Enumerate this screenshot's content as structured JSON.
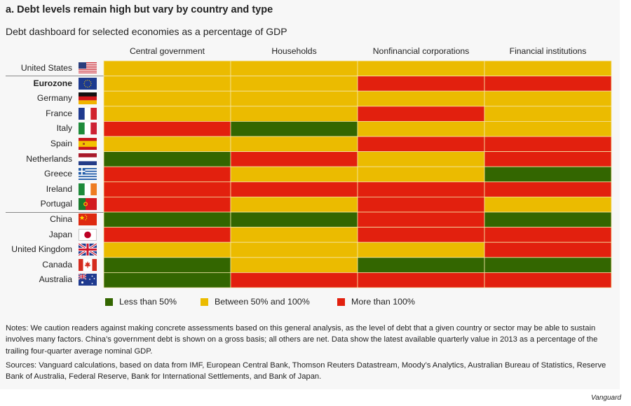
{
  "title": "a. Debt levels remain high but vary by country and type",
  "subtitle": "Debt dashboard for selected economies as a percentage of GDP",
  "chart_data": {
    "type": "heatmap",
    "title": "Debt levels remain high but vary by country and type",
    "subtitle": "Debt dashboard for selected economies as a percentage of GDP",
    "columns": [
      "Central government",
      "Households",
      "Nonfinancial corporations",
      "Financial institutions"
    ],
    "rows": [
      "United States",
      "Eurozone",
      "Germany",
      "France",
      "Italy",
      "Spain",
      "Netherlands",
      "Greece",
      "Ireland",
      "Portugal",
      "China",
      "Japan",
      "United Kingdom",
      "Canada",
      "Australia"
    ],
    "categories": {
      "low": {
        "label": "Less than 50%",
        "color": "#336600"
      },
      "mid": {
        "label": "Between 50% and 100%",
        "color": "#ebbb00"
      },
      "high": {
        "label": "More than 100%",
        "color": "#e2200e"
      }
    },
    "values": [
      [
        "mid",
        "mid",
        "mid",
        "mid"
      ],
      [
        "mid",
        "mid",
        "high",
        "high"
      ],
      [
        "mid",
        "mid",
        "mid",
        "mid"
      ],
      [
        "mid",
        "mid",
        "high",
        "mid"
      ],
      [
        "high",
        "low",
        "mid",
        "mid"
      ],
      [
        "mid",
        "mid",
        "high",
        "high"
      ],
      [
        "low",
        "high",
        "mid",
        "high"
      ],
      [
        "high",
        "mid",
        "mid",
        "low"
      ],
      [
        "high",
        "high",
        "high",
        "high"
      ],
      [
        "high",
        "mid",
        "high",
        "mid"
      ],
      [
        "low",
        "low",
        "high",
        "low"
      ],
      [
        "high",
        "mid",
        "high",
        "high"
      ],
      [
        "mid",
        "mid",
        "mid",
        "high"
      ],
      [
        "low",
        "mid",
        "low",
        "low"
      ],
      [
        "low",
        "high",
        "high",
        "high"
      ]
    ],
    "legend": [
      "Less than 50%",
      "Between 50% and 100%",
      "More than 100%"
    ],
    "legend_position": "bottom",
    "row_groups": [
      [
        "United States"
      ],
      [
        "Eurozone",
        "Germany",
        "France",
        "Italy",
        "Spain",
        "Netherlands",
        "Greece",
        "Ireland",
        "Portugal"
      ],
      [
        "China",
        "Japan",
        "United Kingdom",
        "Canada",
        "Australia"
      ]
    ],
    "bold_rows": [
      "Eurozone"
    ]
  },
  "flags": [
    "us-flag",
    "eu-flag",
    "germany-flag",
    "france-flag",
    "italy-flag",
    "spain-flag",
    "netherlands-flag",
    "greece-flag",
    "ireland-flag",
    "portugal-flag",
    "china-flag",
    "japan-flag",
    "uk-flag",
    "canada-flag",
    "australia-flag"
  ],
  "notes": "Notes: We caution readers against making concrete assessments based on this general analysis, as the level of debt that a given country or sector may be able to sustain involves many factors. China’s government debt is shown on a gross basis; all others are net. Data show the latest available quarterly value in 2013 as a percentage of the trailing four-quarter average nominal GDP.",
  "sources": "Sources: Vanguard calculations, based on data from IMF, European Central Bank, Thomson Reuters Datastream, Moody’s Analytics, Australian Bureau of Statistics, Reserve Bank of Australia, Federal Reserve, Bank for International Settlements, and Bank of Japan.",
  "brand": "Vanguard"
}
